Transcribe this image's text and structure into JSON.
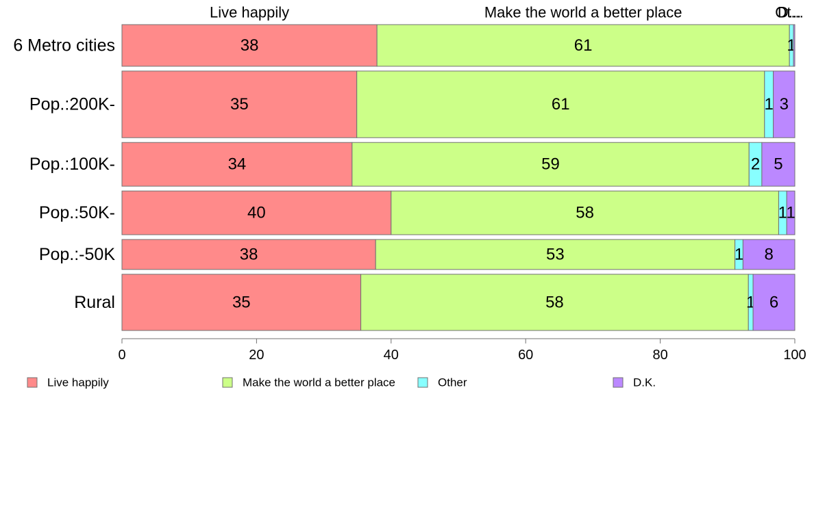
{
  "chart_data": {
    "type": "bar",
    "orientation": "horizontal",
    "stacked": true,
    "categories": [
      "6 Metro cities",
      "Pop.:200K-",
      "Pop.:100K-",
      "Pop.:50K-",
      "Pop.:-50K",
      "Rural"
    ],
    "category_weights": [
      1.0,
      1.6,
      1.05,
      1.05,
      0.72,
      1.35
    ],
    "series": [
      {
        "name": "Live happily",
        "color": "#FF8A8A",
        "values": [
          37.9,
          34.9,
          34.2,
          40.0,
          37.7,
          35.5
        ],
        "labels": [
          "38",
          "35",
          "34",
          "40",
          "38",
          "35"
        ]
      },
      {
        "name": "Make the world a better place",
        "color": "#CCFF88",
        "values": [
          61.3,
          60.6,
          59.0,
          57.6,
          53.4,
          57.6
        ],
        "labels": [
          "61",
          "61",
          "59",
          "58",
          "53",
          "58"
        ]
      },
      {
        "name": "Other",
        "color": "#88FFFF",
        "values": [
          0.6,
          1.3,
          1.9,
          1.2,
          1.2,
          0.7
        ],
        "labels": [
          "1",
          "1",
          "2",
          "1",
          "1",
          "1"
        ]
      },
      {
        "name": "D.K.",
        "color": "#BB88FF",
        "values": [
          0.2,
          3.2,
          4.9,
          1.2,
          7.7,
          6.2
        ],
        "labels": [
          "",
          "3",
          "5",
          "1",
          "8",
          "6"
        ]
      }
    ],
    "top_labels": [
      "Live happily",
      "Make the world a better place",
      "Ot...",
      "D..."
    ],
    "xlim": [
      0,
      100
    ],
    "xticks": [
      "0",
      "20",
      "40",
      "60",
      "80",
      "100"
    ],
    "xlabel": "",
    "ylabel": "",
    "title": "",
    "grid": false,
    "legend_position": "bottom"
  }
}
